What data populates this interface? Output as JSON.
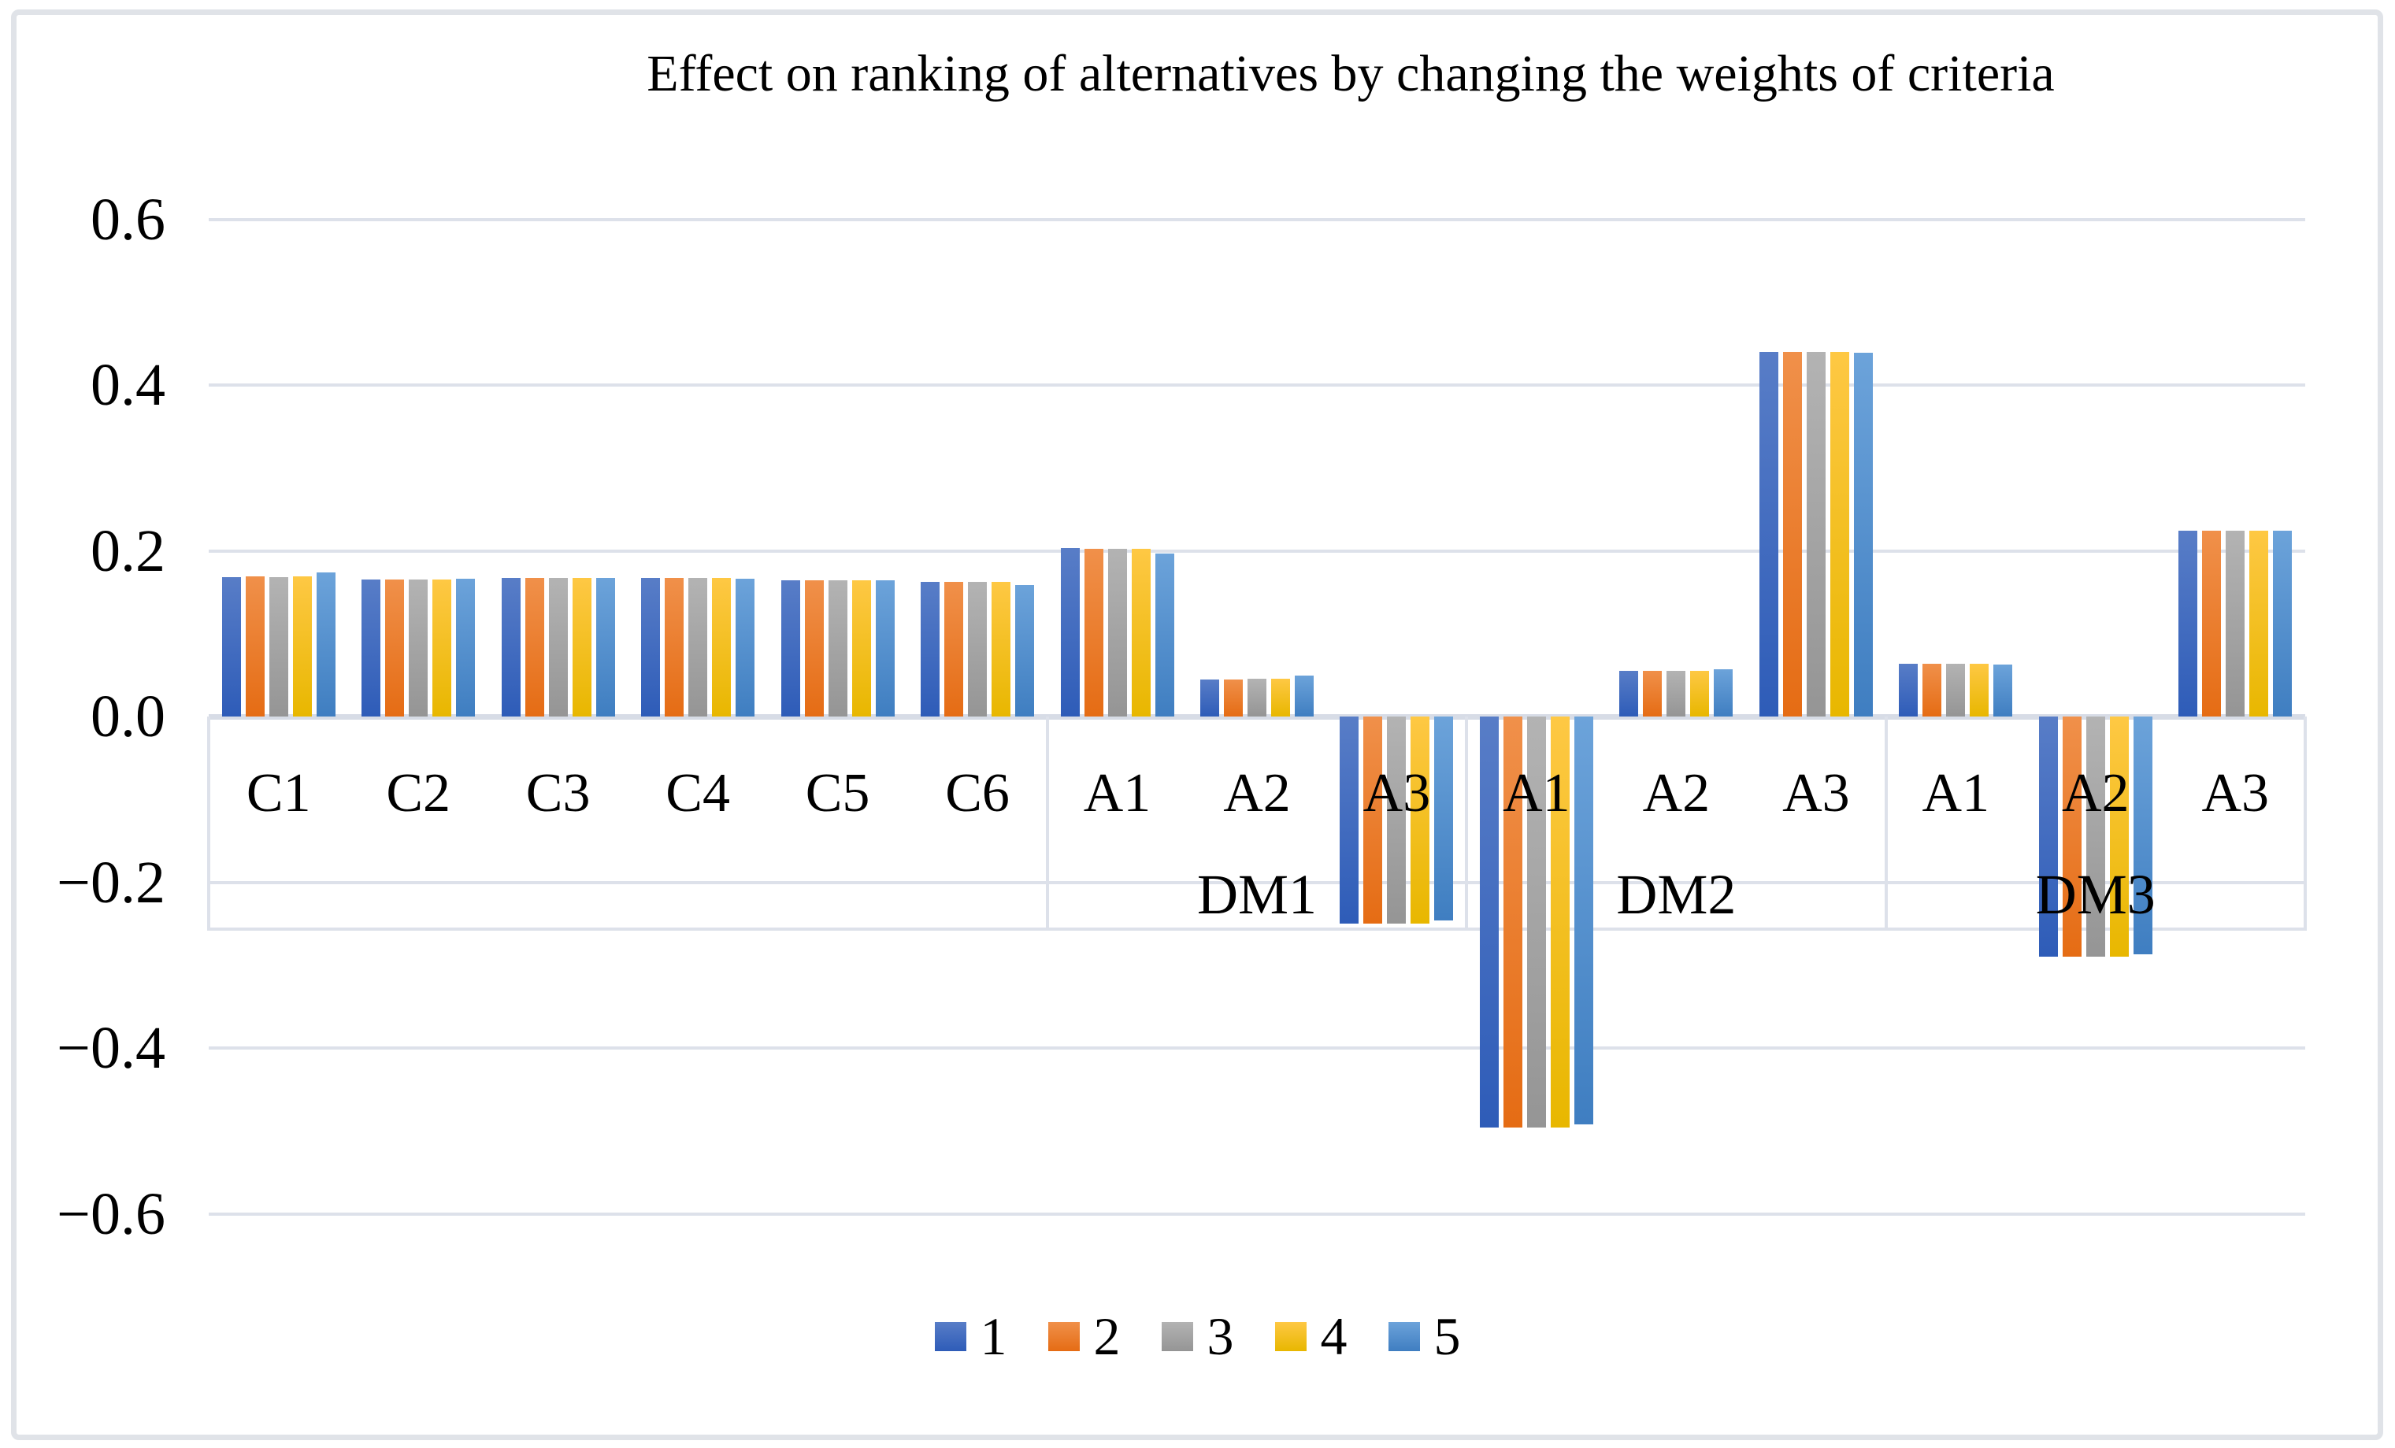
{
  "figure": {
    "border_color": "#e0e3e8",
    "background": "#ffffff"
  },
  "chart_data": {
    "type": "bar",
    "title": "Effect on ranking of alternatives by changing the weights of criteria",
    "xlabel": "",
    "ylabel": "",
    "ylim": [
      -0.6,
      0.6
    ],
    "ytick_step": 0.2,
    "yticks": [
      0.6,
      0.4,
      0.2,
      0.0,
      -0.2,
      -0.4,
      -0.6
    ],
    "ytick_labels": [
      "0.6",
      "0.4",
      "0.2",
      "0.0",
      "−0.2",
      "−0.4",
      "−0.6"
    ],
    "grid": true,
    "gridline_color": "#dde1ea",
    "categories": [
      "C1",
      "C2",
      "C3",
      "C4",
      "C5",
      "C6",
      "A1",
      "A2",
      "A3",
      "A1",
      "A2",
      "A3",
      "A1",
      "A2",
      "A3"
    ],
    "category_groups": [
      {
        "label": "",
        "start": 0,
        "end": 6
      },
      {
        "label": "DM1",
        "start": 6,
        "end": 9
      },
      {
        "label": "DM2",
        "start": 9,
        "end": 12
      },
      {
        "label": "DM3",
        "start": 12,
        "end": 15
      }
    ],
    "legend": {
      "position": "bottom",
      "entries": [
        "1",
        "2",
        "3",
        "4",
        "5"
      ]
    },
    "series": [
      {
        "name": "1",
        "color_top": "#587dc7",
        "color_bottom": "#2e5cb8",
        "values": [
          0.168,
          0.165,
          0.167,
          0.167,
          0.164,
          0.162,
          0.203,
          0.045,
          -0.25,
          -0.496,
          0.055,
          0.44,
          0.064,
          -0.29,
          0.224
        ]
      },
      {
        "name": "2",
        "color_top": "#f0904a",
        "color_bottom": "#e56c14",
        "values": [
          0.169,
          0.165,
          0.167,
          0.167,
          0.164,
          0.162,
          0.202,
          0.045,
          -0.25,
          -0.496,
          0.055,
          0.44,
          0.064,
          -0.29,
          0.224
        ]
      },
      {
        "name": "3",
        "color_top": "#b3b3b3",
        "color_bottom": "#959595",
        "values": [
          0.168,
          0.165,
          0.167,
          0.167,
          0.164,
          0.162,
          0.202,
          0.046,
          -0.25,
          -0.496,
          0.055,
          0.44,
          0.064,
          -0.29,
          0.224
        ]
      },
      {
        "name": "4",
        "color_top": "#fec844",
        "color_bottom": "#e8b700",
        "values": [
          0.169,
          0.165,
          0.167,
          0.167,
          0.164,
          0.162,
          0.202,
          0.046,
          -0.25,
          -0.496,
          0.055,
          0.44,
          0.064,
          -0.29,
          0.224
        ]
      },
      {
        "name": "5",
        "color_top": "#6ca3da",
        "color_bottom": "#3f7ec1",
        "values": [
          0.174,
          0.166,
          0.167,
          0.166,
          0.164,
          0.159,
          0.197,
          0.049,
          -0.246,
          -0.492,
          0.057,
          0.439,
          0.063,
          -0.287,
          0.224
        ]
      }
    ]
  }
}
